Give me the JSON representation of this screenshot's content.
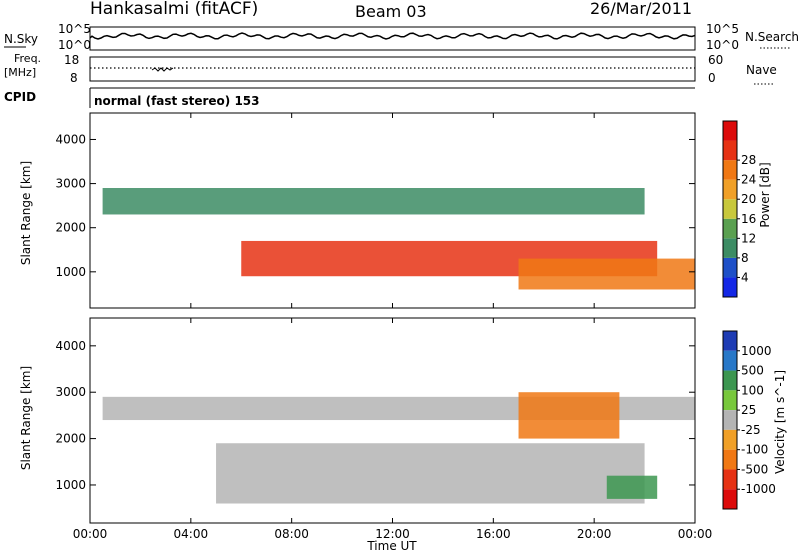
{
  "header": {
    "station": "Hankasalmi (fitACF)",
    "beam": "Beam 03",
    "date": "26/Mar/2011"
  },
  "nsky_panel": {
    "left_label": "N.Sky",
    "right_label": "N.Search",
    "ticks": [
      "10^5",
      "10^0"
    ]
  },
  "freq_panel": {
    "label_top": "Freq.",
    "label_unit": "[MHz]",
    "left_ticks": [
      "18",
      "8"
    ],
    "right_ticks": [
      "60",
      "0"
    ],
    "right_label": "Nave"
  },
  "cpid": {
    "label": "CPID",
    "text": "normal (fast stereo) 153"
  },
  "chart_data": [
    {
      "type": "heatmap",
      "title": "",
      "xlabel": "Time UT",
      "ylabel": "Slant Range [km]",
      "xlim": [
        0,
        24
      ],
      "ylim": [
        180,
        4600
      ],
      "x_ticks": [
        "00:00",
        "04:00",
        "08:00",
        "12:00",
        "16:00",
        "20:00",
        "00:00"
      ],
      "y_ticks": [
        "1000",
        "2000",
        "3000",
        "4000"
      ],
      "colorbar": {
        "label": "Power [dB]",
        "range": [
          0,
          32
        ],
        "ticks": [
          "4",
          "8",
          "12",
          "16",
          "20",
          "24",
          "28"
        ],
        "colors": [
          "#1428e6",
          "#1e50c8",
          "#3c8c64",
          "#5aa050",
          "#c8c83c",
          "#f0a028",
          "#f07814",
          "#e63214",
          "#dc0a0a"
        ]
      },
      "regions": [
        {
          "name": "main band",
          "t_start": 6,
          "t_end": 22.5,
          "range_start_km": 900,
          "range_end_km": 1700,
          "level_db": 28
        },
        {
          "name": "upper band",
          "t_start": 0.5,
          "t_end": 22,
          "range_start_km": 2300,
          "range_end_km": 2900,
          "level_db": 10
        },
        {
          "name": "lower band",
          "t_start": 17,
          "t_end": 24,
          "range_start_km": 600,
          "range_end_km": 1300,
          "level_db": 24
        }
      ]
    },
    {
      "type": "heatmap",
      "title": "",
      "xlabel": "Time UT",
      "ylabel": "Slant Range [km]",
      "xlim": [
        0,
        24
      ],
      "ylim": [
        180,
        4600
      ],
      "x_ticks": [
        "00:00",
        "04:00",
        "08:00",
        "12:00",
        "16:00",
        "20:00",
        "00:00"
      ],
      "y_ticks": [
        "1000",
        "2000",
        "3000",
        "4000"
      ],
      "colorbar": {
        "label": "Velocity [m s^-1]",
        "ticks": [
          "1000",
          "500",
          "100",
          "25",
          "-25",
          "-100",
          "-500",
          "-1000"
        ],
        "colors": [
          "#1e3cb4",
          "#2878c8",
          "#3c9650",
          "#78c83c",
          "#b4b4b4",
          "#f0a028",
          "#f07814",
          "#e63214",
          "#dc0a0a"
        ]
      },
      "regions": [
        {
          "name": "ground scatter",
          "t_start": 5,
          "t_end": 22,
          "range_start_km": 600,
          "range_end_km": 1900,
          "velocity": 0
        },
        {
          "name": "upper scatter",
          "t_start": 0.5,
          "t_end": 24,
          "range_start_km": 2400,
          "range_end_km": 2900,
          "velocity": 0
        },
        {
          "name": "positive flow",
          "t_start": 20.5,
          "t_end": 22.5,
          "range_start_km": 700,
          "range_end_km": 1200,
          "velocity": 100
        },
        {
          "name": "negative flow",
          "t_start": 17,
          "t_end": 21,
          "range_start_km": 2000,
          "range_end_km": 3000,
          "velocity": -500
        }
      ]
    }
  ]
}
